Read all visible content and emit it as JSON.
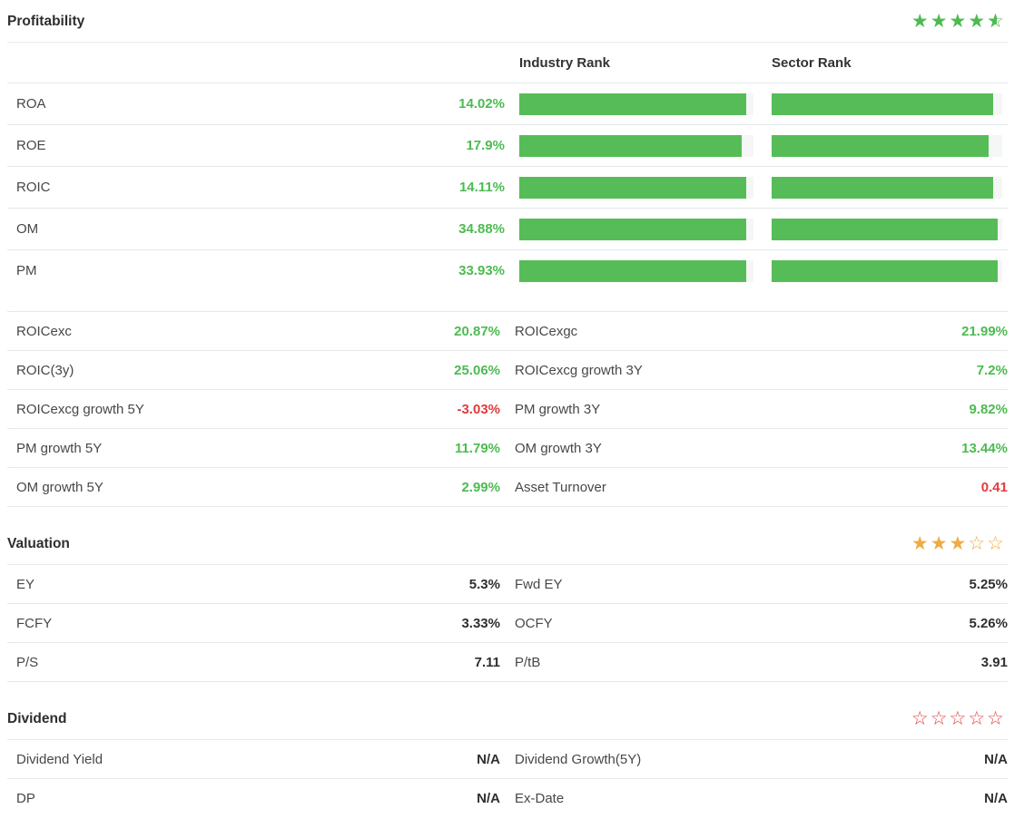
{
  "colors": {
    "green": "#4cbb51",
    "red": "#e23b3b",
    "dark": "#2f2f2f",
    "bar_green": "#56bc58",
    "bar_track": "#f5f6f6",
    "star_green": "#4cbb50",
    "star_orange": "#f0aa44",
    "star_red": "#e23b3c"
  },
  "icons": {
    "star_full_glyph": "★",
    "star_empty_glyph": "☆"
  },
  "profitability": {
    "title": "Profitability",
    "rating": {
      "full": 4,
      "half": 1,
      "empty": 0,
      "color_key": "star_green"
    },
    "columns": {
      "industry": "Industry Rank",
      "sector": "Sector Rank"
    },
    "rank_rows": [
      {
        "label": "ROA",
        "value": "14.02%",
        "tone": "green",
        "industry_pct": 97,
        "sector_pct": 96
      },
      {
        "label": "ROE",
        "value": "17.9%",
        "tone": "green",
        "industry_pct": 95,
        "sector_pct": 94
      },
      {
        "label": "ROIC",
        "value": "14.11%",
        "tone": "green",
        "industry_pct": 97,
        "sector_pct": 96
      },
      {
        "label": "OM",
        "value": "34.88%",
        "tone": "green",
        "industry_pct": 97,
        "sector_pct": 98
      },
      {
        "label": "PM",
        "value": "33.93%",
        "tone": "green",
        "industry_pct": 97,
        "sector_pct": 98
      }
    ],
    "metric_rows": [
      {
        "left": {
          "label": "ROICexc",
          "value": "20.87%",
          "tone": "green"
        },
        "right": {
          "label": "ROICexgc",
          "value": "21.99%",
          "tone": "green"
        }
      },
      {
        "left": {
          "label": "ROIC(3y)",
          "value": "25.06%",
          "tone": "green"
        },
        "right": {
          "label": "ROICexcg growth 3Y",
          "value": "7.2%",
          "tone": "green"
        }
      },
      {
        "left": {
          "label": "ROICexcg growth 5Y",
          "value": "-3.03%",
          "tone": "red"
        },
        "right": {
          "label": "PM growth 3Y",
          "value": "9.82%",
          "tone": "green"
        }
      },
      {
        "left": {
          "label": "PM growth 5Y",
          "value": "11.79%",
          "tone": "green"
        },
        "right": {
          "label": "OM growth 3Y",
          "value": "13.44%",
          "tone": "green"
        }
      },
      {
        "left": {
          "label": "OM growth 5Y",
          "value": "2.99%",
          "tone": "green"
        },
        "right": {
          "label": "Asset Turnover",
          "value": "0.41",
          "tone": "red"
        }
      }
    ]
  },
  "valuation": {
    "title": "Valuation",
    "rating": {
      "full": 3,
      "half": 0,
      "empty": 2,
      "color_key": "star_orange"
    },
    "metric_rows": [
      {
        "left": {
          "label": "EY",
          "value": "5.3%",
          "tone": "dark"
        },
        "right": {
          "label": "Fwd EY",
          "value": "5.25%",
          "tone": "dark"
        }
      },
      {
        "left": {
          "label": "FCFY",
          "value": "3.33%",
          "tone": "dark"
        },
        "right": {
          "label": "OCFY",
          "value": "5.26%",
          "tone": "dark"
        }
      },
      {
        "left": {
          "label": "P/S",
          "value": "7.11",
          "tone": "dark"
        },
        "right": {
          "label": "P/tB",
          "value": "3.91",
          "tone": "dark"
        }
      }
    ]
  },
  "dividend": {
    "title": "Dividend",
    "rating": {
      "full": 0,
      "half": 0,
      "empty": 5,
      "color_key": "star_red"
    },
    "metric_rows": [
      {
        "left": {
          "label": "Dividend Yield",
          "value": "N/A",
          "tone": "dark"
        },
        "right": {
          "label": "Dividend Growth(5Y)",
          "value": "N/A",
          "tone": "dark"
        }
      },
      {
        "left": {
          "label": "DP",
          "value": "N/A",
          "tone": "dark"
        },
        "right": {
          "label": "Ex-Date",
          "value": "N/A",
          "tone": "dark"
        }
      }
    ]
  }
}
